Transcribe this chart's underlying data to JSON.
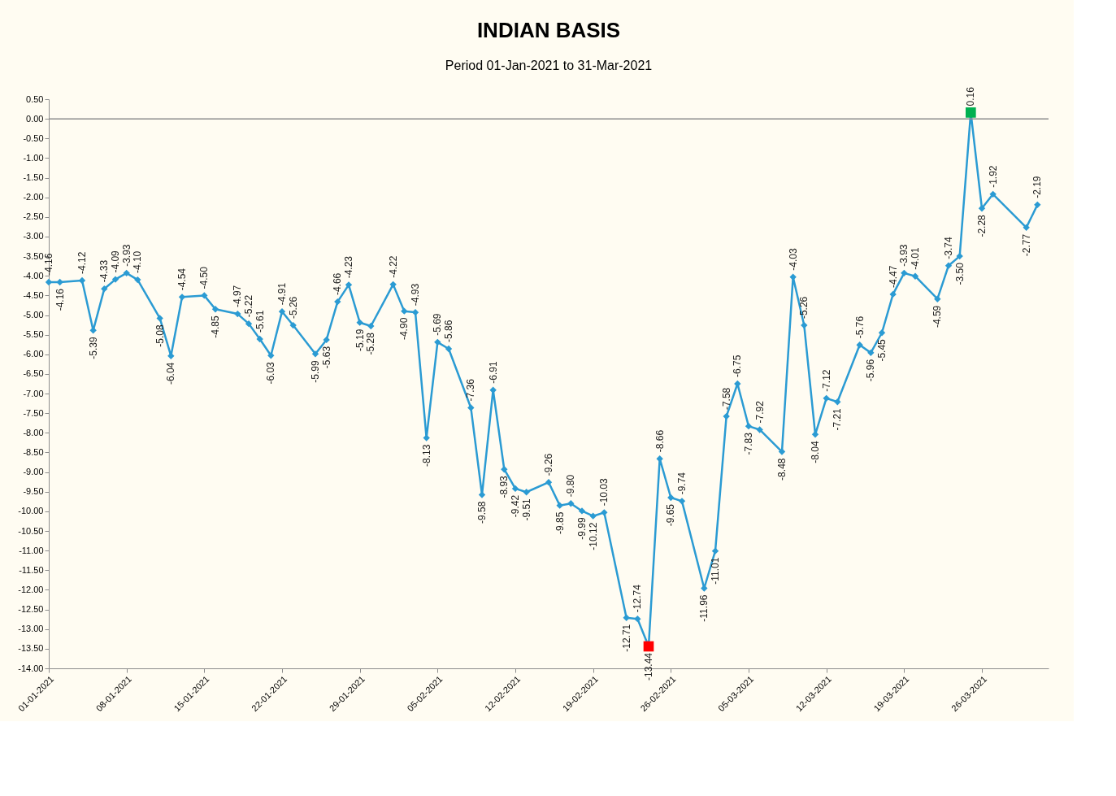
{
  "chart_data": {
    "type": "line",
    "title": "INDIAN BASIS",
    "subtitle": "Period 01-Jan-2021 to 31-Mar-2021",
    "xlim": [
      "2021-01-01",
      "2021-04-01"
    ],
    "xticks": [
      {
        "value": "2021-01-01",
        "label": "01-01-2021"
      },
      {
        "value": "2021-01-08",
        "label": "08-01-2021"
      },
      {
        "value": "2021-01-15",
        "label": "15-01-2021"
      },
      {
        "value": "2021-01-22",
        "label": "22-01-2021"
      },
      {
        "value": "2021-01-29",
        "label": "29-01-2021"
      },
      {
        "value": "2021-02-05",
        "label": "05-02-2021"
      },
      {
        "value": "2021-02-12",
        "label": "12-02-2021"
      },
      {
        "value": "2021-02-19",
        "label": "19-02-2021"
      },
      {
        "value": "2021-02-26",
        "label": "26-02-2021"
      },
      {
        "value": "2021-03-05",
        "label": "05-03-2021"
      },
      {
        "value": "2021-03-12",
        "label": "12-03-2021"
      },
      {
        "value": "2021-03-19",
        "label": "19-03-2021"
      },
      {
        "value": "2021-03-26",
        "label": "26-03-2021"
      }
    ],
    "ylim": [
      -14,
      0.5
    ],
    "yticks": [
      {
        "value": 0.5,
        "label": "0.50"
      },
      {
        "value": 0,
        "label": "0.00"
      },
      {
        "value": -0.5,
        "label": "-0.50"
      },
      {
        "value": -1,
        "label": "-1.00"
      },
      {
        "value": -1.5,
        "label": "-1.50"
      },
      {
        "value": -2,
        "label": "-2.00"
      },
      {
        "value": -2.5,
        "label": "-2.50"
      },
      {
        "value": -3,
        "label": "-3.00"
      },
      {
        "value": -3.5,
        "label": "-3.50"
      },
      {
        "value": -4,
        "label": "-4.00"
      },
      {
        "value": -4.5,
        "label": "-4.50"
      },
      {
        "value": -5,
        "label": "-5.00"
      },
      {
        "value": -5.5,
        "label": "-5.50"
      },
      {
        "value": -6,
        "label": "-6.00"
      },
      {
        "value": -6.5,
        "label": "-6.50"
      },
      {
        "value": -7,
        "label": "-7.00"
      },
      {
        "value": -7.5,
        "label": "-7.50"
      },
      {
        "value": -8,
        "label": "-8.00"
      },
      {
        "value": -8.5,
        "label": "-8.50"
      },
      {
        "value": -9,
        "label": "-9.00"
      },
      {
        "value": -9.5,
        "label": "-9.50"
      },
      {
        "value": -10,
        "label": "-10.00"
      },
      {
        "value": -10.5,
        "label": "-10.50"
      },
      {
        "value": -11,
        "label": "-11.00"
      },
      {
        "value": -11.5,
        "label": "-11.50"
      },
      {
        "value": -12,
        "label": "-12.00"
      },
      {
        "value": -12.5,
        "label": "-12.50"
      },
      {
        "value": -13,
        "label": "-13.00"
      },
      {
        "value": -13.5,
        "label": "-13.50"
      },
      {
        "value": -14,
        "label": "-14.00"
      }
    ],
    "grid": false,
    "line_style": "solid",
    "ref_lines": [
      {
        "axis": "y",
        "value": 0,
        "color": "#8c8c8c"
      }
    ],
    "series": [
      {
        "marker": "diamond",
        "color": "#2b9bd3",
        "x": [
          "2021-01-01",
          "2021-01-02",
          "2021-01-04",
          "2021-01-05",
          "2021-01-06",
          "2021-01-07",
          "2021-01-08",
          "2021-01-09",
          "2021-01-11",
          "2021-01-12",
          "2021-01-13",
          "2021-01-15",
          "2021-01-16",
          "2021-01-18",
          "2021-01-19",
          "2021-01-20",
          "2021-01-21",
          "2021-01-22",
          "2021-01-23",
          "2021-01-25",
          "2021-01-26",
          "2021-01-27",
          "2021-01-28",
          "2021-01-29",
          "2021-01-30",
          "2021-02-01",
          "2021-02-02",
          "2021-02-03",
          "2021-02-04",
          "2021-02-05",
          "2021-02-06",
          "2021-02-08",
          "2021-02-09",
          "2021-02-10",
          "2021-02-11",
          "2021-02-12",
          "2021-02-13",
          "2021-02-15",
          "2021-02-16",
          "2021-02-17",
          "2021-02-18",
          "2021-02-19",
          "2021-02-20",
          "2021-02-22",
          "2021-02-23",
          "2021-02-24",
          "2021-02-25",
          "2021-02-26",
          "2021-02-27",
          "2021-03-01",
          "2021-03-02",
          "2021-03-03",
          "2021-03-04",
          "2021-03-05",
          "2021-03-06",
          "2021-03-08",
          "2021-03-09",
          "2021-03-10",
          "2021-03-11",
          "2021-03-12",
          "2021-03-13",
          "2021-03-15",
          "2021-03-16",
          "2021-03-17",
          "2021-03-18",
          "2021-03-19",
          "2021-03-20",
          "2021-03-22",
          "2021-03-23",
          "2021-03-24",
          "2021-03-25",
          "2021-03-26",
          "2021-03-27",
          "2021-03-30",
          "2021-03-31"
        ],
        "value_labels": [
          "-4.16",
          "-4.16",
          "-4.12",
          "-5.39",
          "-4.33",
          "-4.09",
          "-3.93",
          "-4.10",
          "-5.08",
          "-6.04",
          "-4.54",
          "-4.50",
          "-4.85",
          "-4.97",
          "-5.22",
          "-5.61",
          "-6.03",
          "-4.91",
          "-5.26",
          "-5.99",
          "-5.63",
          "-4.66",
          "-4.23",
          "-5.19",
          "-5.28",
          "-4.22",
          "-4.90",
          "-4.93",
          "-8.13",
          "-5.69",
          "-5.86",
          "-7.36",
          "-9.58",
          "-6.91",
          "-8.93",
          "-9.42",
          "-9.51",
          "-9.26",
          "-9.85",
          "-9.80",
          "-9.99",
          "-10.12",
          "-10.03",
          "-12.71",
          "-12.74",
          "-13.44",
          "-8.66",
          "-9.65",
          "-9.74",
          "-11.96",
          "-11.01",
          "-7.58",
          "-6.75",
          "-7.83",
          "-7.92",
          "-8.48",
          "-4.03",
          "-5.26",
          "-8.04",
          "-7.12",
          "-7.21",
          "-5.76",
          "-5.96",
          "-5.45",
          "-4.47",
          "-3.93",
          "-4.01",
          "-4.59",
          "-3.74",
          "-3.50",
          "0.16",
          "-2.28",
          "-1.92",
          "-2.77",
          "-2.19"
        ],
        "values": [
          -4.16,
          -4.16,
          -4.12,
          -5.39,
          -4.33,
          -4.09,
          -3.93,
          -4.1,
          -5.08,
          -6.04,
          -4.54,
          -4.5,
          -4.85,
          -4.97,
          -5.22,
          -5.61,
          -6.03,
          -4.91,
          -5.26,
          -5.99,
          -5.63,
          -4.66,
          -4.23,
          -5.19,
          -5.28,
          -4.22,
          -4.9,
          -4.93,
          -8.13,
          -5.69,
          -5.86,
          -7.36,
          -9.58,
          -6.91,
          -8.93,
          -9.42,
          -9.51,
          -9.26,
          -9.85,
          -9.8,
          -9.99,
          -10.12,
          -10.03,
          -12.71,
          -12.74,
          -13.44,
          -8.66,
          -9.65,
          -9.74,
          -11.96,
          -11.01,
          -7.58,
          -6.75,
          -7.83,
          -7.92,
          -8.48,
          -4.03,
          -5.26,
          -8.04,
          -7.12,
          -7.21,
          -5.76,
          -5.96,
          -5.45,
          -4.47,
          -3.93,
          -4.01,
          -4.59,
          -3.74,
          -3.5,
          0.16,
          -2.28,
          -1.92,
          -2.77,
          -2.19
        ]
      },
      {
        "type": "scatter",
        "marker": "square",
        "color": "#ff0000",
        "x": [
          "2021-02-24"
        ],
        "values": [
          -13.44
        ]
      },
      {
        "type": "scatter",
        "marker": "square",
        "color": "#00b050",
        "x": [
          "2021-03-25"
        ],
        "values": [
          0.16
        ]
      }
    ]
  }
}
